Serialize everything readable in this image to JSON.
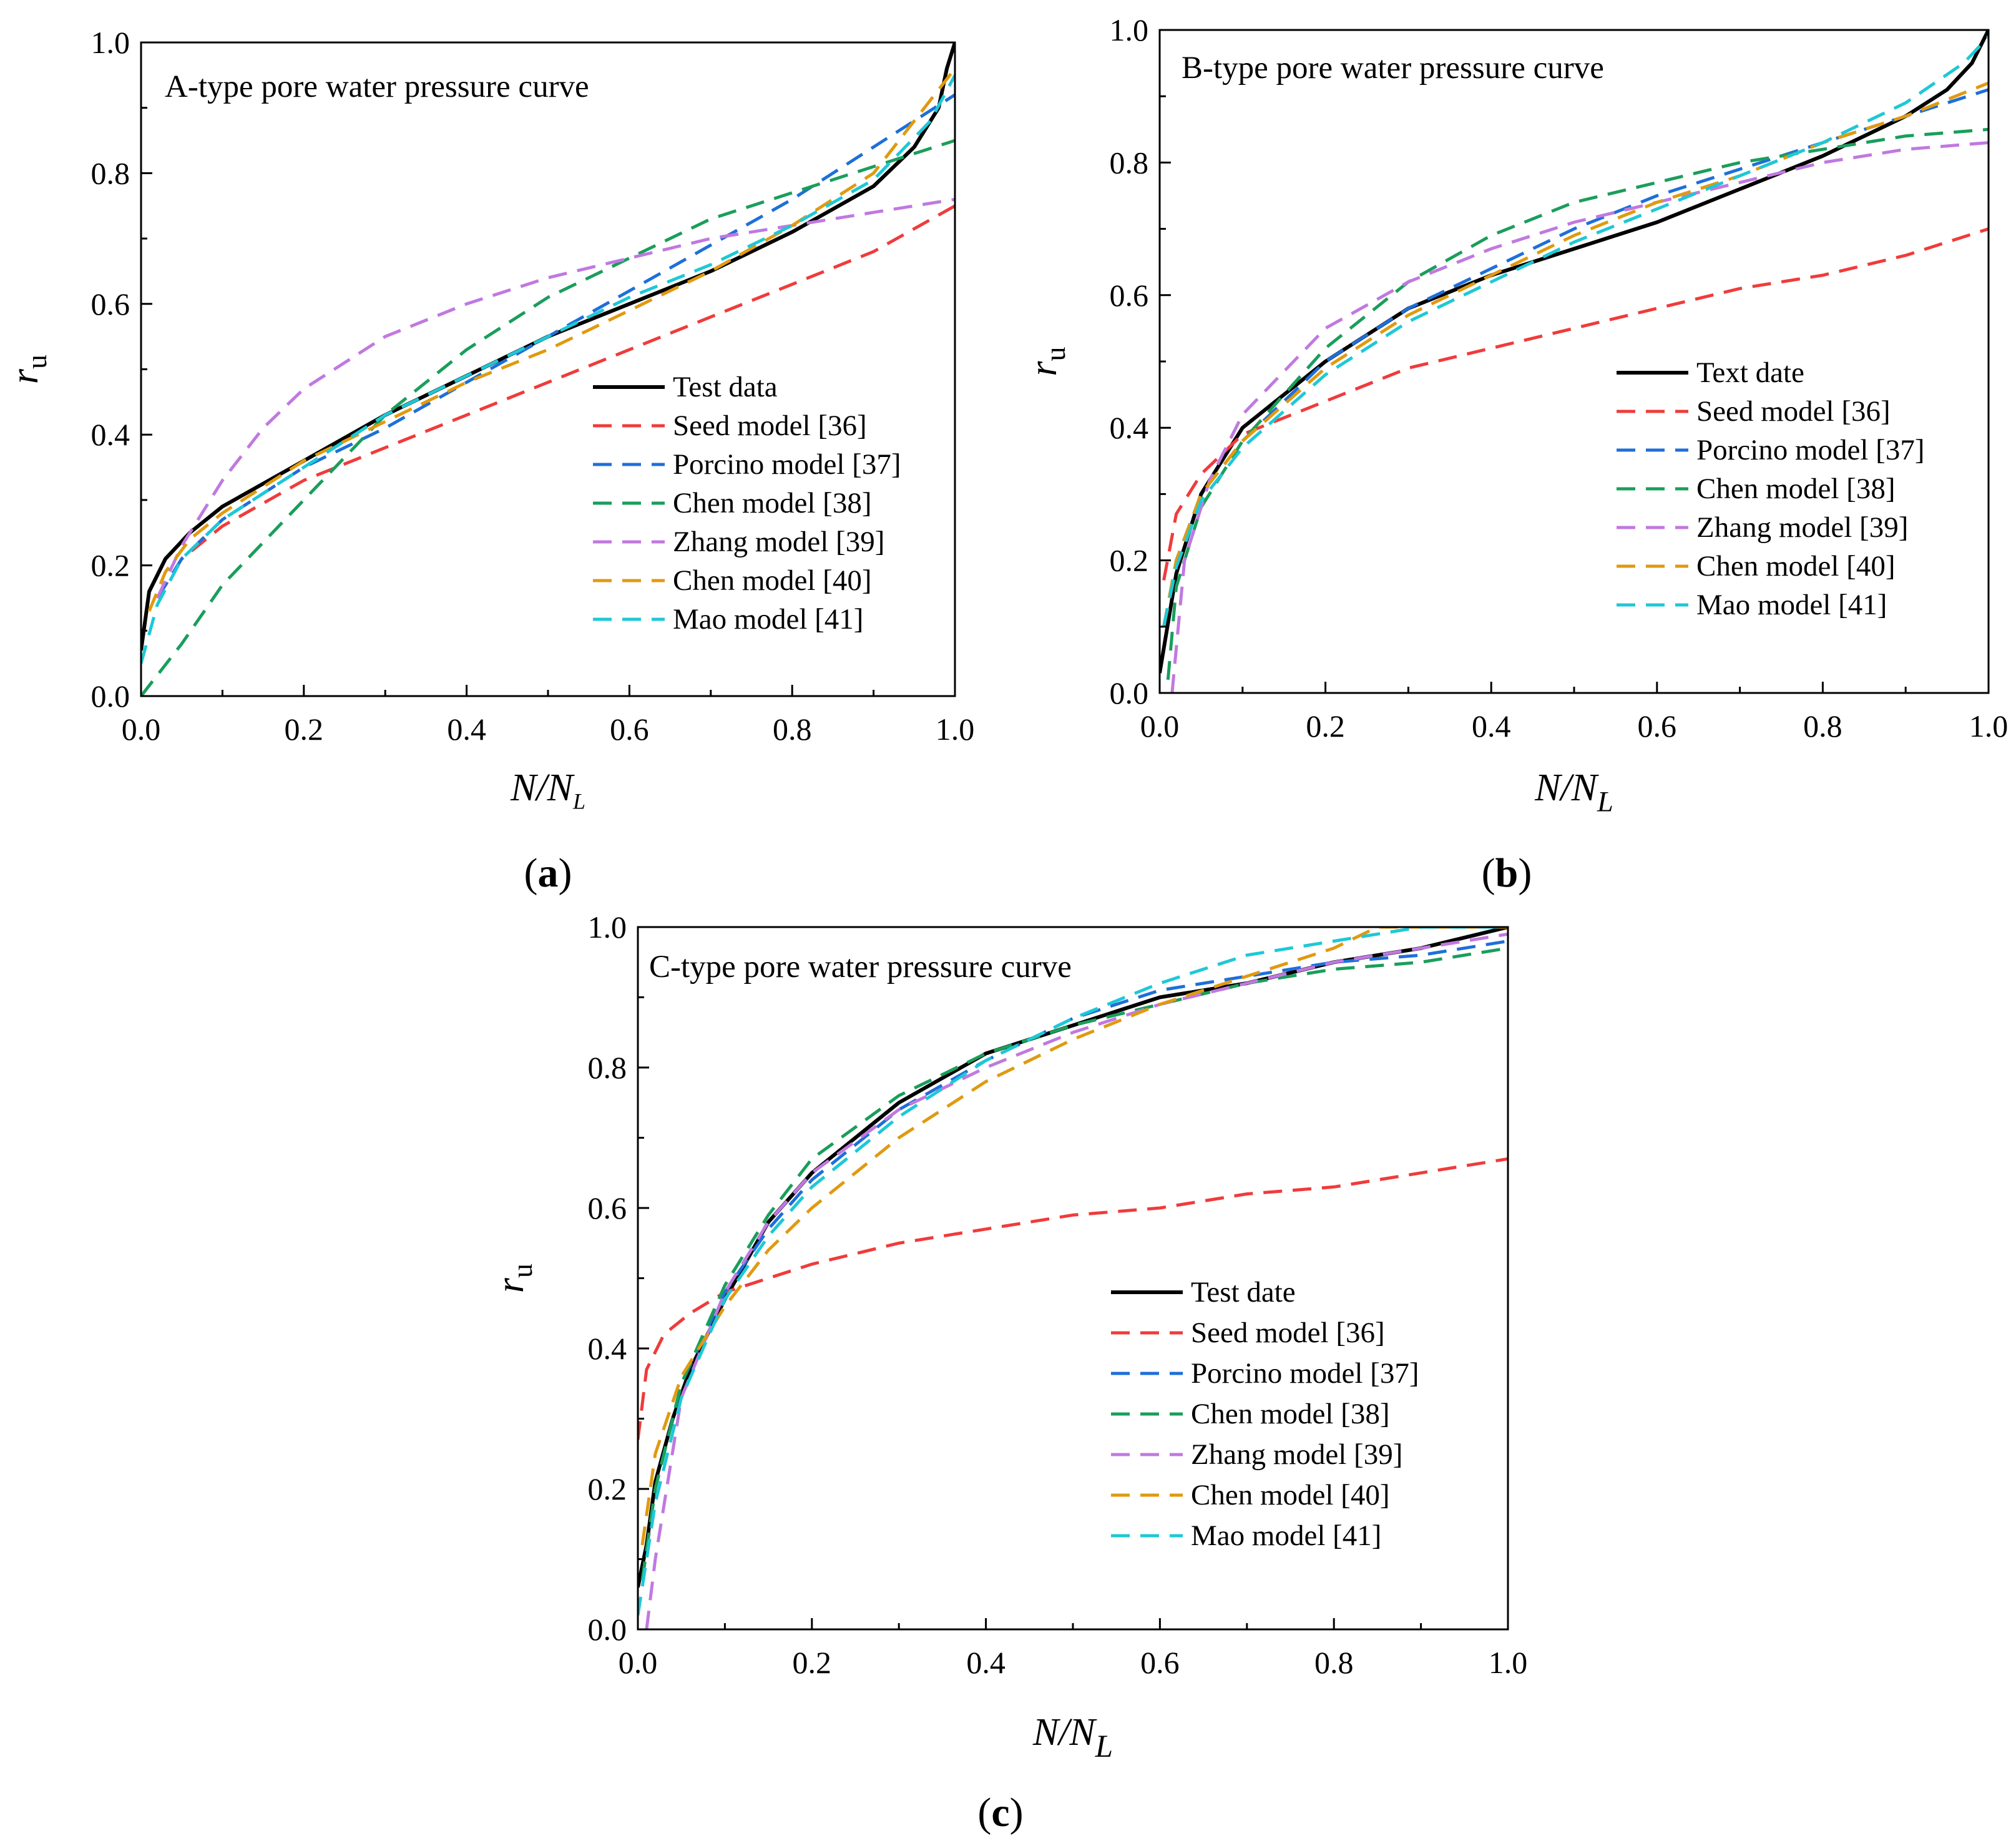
{
  "chart_data": [
    {
      "type": "line",
      "caption": "a",
      "title": "A-type pore water pressure curve",
      "xlabel": "N/N",
      "xlabel_sub": "L",
      "ylabel": "r",
      "ylabel_sub": "u",
      "xlim": [
        0,
        1
      ],
      "ylim": [
        0,
        1
      ],
      "xticks": [
        "0.0",
        "0.2",
        "0.4",
        "0.6",
        "0.8",
        "1.0"
      ],
      "yticks": [
        "0.0",
        "0.2",
        "0.4",
        "0.6",
        "0.8",
        "1.0"
      ],
      "legend_position": "center-right",
      "series": [
        {
          "name": "Test data",
          "color": "#000000",
          "dashed": false,
          "x": [
            0,
            0.01,
            0.03,
            0.06,
            0.1,
            0.2,
            0.3,
            0.4,
            0.5,
            0.6,
            0.7,
            0.8,
            0.9,
            0.95,
            0.98,
            0.99,
            1.0
          ],
          "y": [
            0.07,
            0.16,
            0.21,
            0.25,
            0.29,
            0.36,
            0.43,
            0.49,
            0.55,
            0.6,
            0.65,
            0.71,
            0.78,
            0.84,
            0.9,
            0.96,
            1.0
          ]
        },
        {
          "name": "Seed model [36]",
          "color": "#f03b3b",
          "dashed": true,
          "x": [
            0.02,
            0.05,
            0.1,
            0.2,
            0.3,
            0.4,
            0.5,
            0.6,
            0.7,
            0.8,
            0.9,
            1.0
          ],
          "y": [
            0.15,
            0.21,
            0.26,
            0.33,
            0.38,
            0.43,
            0.48,
            0.53,
            0.58,
            0.63,
            0.68,
            0.75
          ]
        },
        {
          "name": "Porcino model [37]",
          "color": "#1e6fd9",
          "dashed": true,
          "x": [
            0.02,
            0.05,
            0.1,
            0.2,
            0.3,
            0.4,
            0.5,
            0.6,
            0.7,
            0.8,
            0.9,
            1.0
          ],
          "y": [
            0.15,
            0.21,
            0.27,
            0.35,
            0.41,
            0.48,
            0.55,
            0.62,
            0.69,
            0.76,
            0.84,
            0.92
          ]
        },
        {
          "name": "Chen model [38]",
          "color": "#1a9e5b",
          "dashed": true,
          "x": [
            0,
            0.05,
            0.1,
            0.2,
            0.3,
            0.4,
            0.5,
            0.6,
            0.7,
            0.8,
            0.9,
            1.0
          ],
          "y": [
            0.0,
            0.08,
            0.17,
            0.3,
            0.43,
            0.53,
            0.61,
            0.67,
            0.73,
            0.77,
            0.81,
            0.85
          ]
        },
        {
          "name": "Zhang model [39]",
          "color": "#c079e0",
          "dashed": true,
          "x": [
            0.02,
            0.05,
            0.1,
            0.15,
            0.2,
            0.3,
            0.4,
            0.5,
            0.6,
            0.7,
            0.8,
            0.9,
            1.0
          ],
          "y": [
            0.15,
            0.23,
            0.33,
            0.41,
            0.47,
            0.55,
            0.6,
            0.64,
            0.67,
            0.7,
            0.72,
            0.74,
            0.76
          ]
        },
        {
          "name": "Chen model [40]",
          "color": "#e09a10",
          "dashed": true,
          "x": [
            0.01,
            0.03,
            0.06,
            0.1,
            0.2,
            0.3,
            0.4,
            0.5,
            0.6,
            0.7,
            0.8,
            0.9,
            1.0
          ],
          "y": [
            0.13,
            0.19,
            0.24,
            0.28,
            0.36,
            0.42,
            0.48,
            0.53,
            0.59,
            0.65,
            0.72,
            0.8,
            0.96
          ]
        },
        {
          "name": "Mao model [41]",
          "color": "#1ec8d6",
          "dashed": true,
          "x": [
            0,
            0.02,
            0.05,
            0.1,
            0.2,
            0.3,
            0.4,
            0.5,
            0.6,
            0.7,
            0.8,
            0.9,
            0.97,
            1.0
          ],
          "y": [
            0.05,
            0.14,
            0.21,
            0.27,
            0.35,
            0.43,
            0.49,
            0.55,
            0.61,
            0.66,
            0.72,
            0.79,
            0.88,
            0.95
          ]
        }
      ]
    },
    {
      "type": "line",
      "caption": "b",
      "title": "B-type pore water pressure curve",
      "xlabel": "N/N",
      "xlabel_sub": "L",
      "ylabel": "r",
      "ylabel_sub": "u",
      "xlim": [
        0,
        1
      ],
      "ylim": [
        0,
        1
      ],
      "xticks": [
        "0.0",
        "0.2",
        "0.4",
        "0.6",
        "0.8",
        "1.0"
      ],
      "yticks": [
        "0.0",
        "0.2",
        "0.4",
        "0.6",
        "0.8",
        "1.0"
      ],
      "legend_position": "center-right",
      "series": [
        {
          "name": "Text date",
          "color": "#000000",
          "dashed": false,
          "x": [
            0,
            0.02,
            0.05,
            0.1,
            0.15,
            0.2,
            0.3,
            0.4,
            0.5,
            0.6,
            0.7,
            0.8,
            0.9,
            0.95,
            0.98,
            1.0
          ],
          "y": [
            0.03,
            0.18,
            0.3,
            0.4,
            0.45,
            0.5,
            0.58,
            0.63,
            0.67,
            0.71,
            0.76,
            0.81,
            0.87,
            0.91,
            0.95,
            1.0
          ]
        },
        {
          "name": "Seed model [36]",
          "color": "#f03b3b",
          "dashed": true,
          "x": [
            0.005,
            0.02,
            0.05,
            0.1,
            0.2,
            0.3,
            0.4,
            0.5,
            0.6,
            0.7,
            0.8,
            0.9,
            1.0
          ],
          "y": [
            0.17,
            0.27,
            0.33,
            0.39,
            0.44,
            0.49,
            0.52,
            0.55,
            0.58,
            0.61,
            0.63,
            0.66,
            0.7
          ]
        },
        {
          "name": "Porcino model [37]",
          "color": "#1e6fd9",
          "dashed": true,
          "x": [
            0.005,
            0.02,
            0.05,
            0.1,
            0.2,
            0.3,
            0.4,
            0.5,
            0.6,
            0.7,
            0.8,
            0.9,
            1.0
          ],
          "y": [
            0.1,
            0.2,
            0.3,
            0.38,
            0.5,
            0.58,
            0.64,
            0.7,
            0.75,
            0.79,
            0.83,
            0.87,
            0.91
          ]
        },
        {
          "name": "Chen model [38]",
          "color": "#1a9e5b",
          "dashed": true,
          "x": [
            0.01,
            0.02,
            0.05,
            0.1,
            0.2,
            0.3,
            0.4,
            0.5,
            0.6,
            0.7,
            0.8,
            0.9,
            1.0
          ],
          "y": [
            0.02,
            0.16,
            0.28,
            0.38,
            0.52,
            0.62,
            0.69,
            0.74,
            0.77,
            0.8,
            0.82,
            0.84,
            0.85
          ]
        },
        {
          "name": "Zhang model [39]",
          "color": "#c079e0",
          "dashed": true,
          "x": [
            0.015,
            0.03,
            0.06,
            0.1,
            0.2,
            0.3,
            0.4,
            0.5,
            0.6,
            0.7,
            0.8,
            0.9,
            1.0
          ],
          "y": [
            0.0,
            0.2,
            0.32,
            0.42,
            0.55,
            0.62,
            0.67,
            0.71,
            0.74,
            0.77,
            0.8,
            0.82,
            0.83
          ]
        },
        {
          "name": "Chen model [40]",
          "color": "#e09a10",
          "dashed": true,
          "x": [
            0.005,
            0.02,
            0.05,
            0.1,
            0.2,
            0.3,
            0.4,
            0.5,
            0.6,
            0.7,
            0.8,
            0.9,
            1.0
          ],
          "y": [
            0.1,
            0.2,
            0.3,
            0.38,
            0.49,
            0.57,
            0.63,
            0.69,
            0.74,
            0.78,
            0.83,
            0.87,
            0.92
          ]
        },
        {
          "name": "Mao model [41]",
          "color": "#1ec8d6",
          "dashed": true,
          "x": [
            0.005,
            0.02,
            0.05,
            0.1,
            0.2,
            0.3,
            0.4,
            0.5,
            0.6,
            0.7,
            0.8,
            0.9,
            0.97,
            1.0
          ],
          "y": [
            0.1,
            0.19,
            0.29,
            0.37,
            0.48,
            0.56,
            0.62,
            0.68,
            0.73,
            0.78,
            0.83,
            0.89,
            0.95,
            0.99
          ]
        }
      ]
    },
    {
      "type": "line",
      "caption": "c",
      "title": "C-type pore water pressure curve",
      "xlabel": "N/N",
      "xlabel_sub": "L",
      "ylabel": "r",
      "ylabel_sub": "u",
      "xlim": [
        0,
        1
      ],
      "ylim": [
        0,
        1
      ],
      "xticks": [
        "0.0",
        "0.2",
        "0.4",
        "0.6",
        "0.8",
        "1.0"
      ],
      "yticks": [
        "0.0",
        "0.2",
        "0.4",
        "0.6",
        "0.8",
        "1.0"
      ],
      "legend_position": "center-right",
      "series": [
        {
          "name": "Test date",
          "color": "#000000",
          "dashed": false,
          "x": [
            0,
            0.01,
            0.02,
            0.04,
            0.06,
            0.08,
            0.1,
            0.15,
            0.2,
            0.3,
            0.4,
            0.5,
            0.6,
            0.7,
            0.8,
            0.9,
            1.0
          ],
          "y": [
            0.06,
            0.12,
            0.21,
            0.3,
            0.37,
            0.42,
            0.47,
            0.58,
            0.65,
            0.75,
            0.82,
            0.86,
            0.9,
            0.92,
            0.95,
            0.97,
            1.0
          ]
        },
        {
          "name": "Seed model [36]",
          "color": "#f03b3b",
          "dashed": true,
          "x": [
            0,
            0.01,
            0.03,
            0.06,
            0.1,
            0.15,
            0.2,
            0.3,
            0.4,
            0.5,
            0.6,
            0.7,
            0.8,
            0.9,
            1.0
          ],
          "y": [
            0.27,
            0.37,
            0.42,
            0.45,
            0.48,
            0.5,
            0.52,
            0.55,
            0.57,
            0.59,
            0.6,
            0.62,
            0.63,
            0.65,
            0.67
          ]
        },
        {
          "name": "Porcino model [37]",
          "color": "#1e6fd9",
          "dashed": true,
          "x": [
            0.005,
            0.02,
            0.05,
            0.1,
            0.15,
            0.2,
            0.3,
            0.4,
            0.5,
            0.6,
            0.7,
            0.8,
            0.9,
            1.0
          ],
          "y": [
            0.07,
            0.2,
            0.35,
            0.48,
            0.57,
            0.64,
            0.74,
            0.81,
            0.87,
            0.91,
            0.93,
            0.95,
            0.96,
            0.98
          ]
        },
        {
          "name": "Chen model [38]",
          "color": "#1a9e5b",
          "dashed": true,
          "x": [
            0.005,
            0.02,
            0.05,
            0.1,
            0.15,
            0.2,
            0.3,
            0.4,
            0.5,
            0.6,
            0.7,
            0.8,
            0.9,
            1.0
          ],
          "y": [
            0.07,
            0.2,
            0.35,
            0.49,
            0.59,
            0.67,
            0.76,
            0.82,
            0.86,
            0.89,
            0.92,
            0.94,
            0.95,
            0.97
          ]
        },
        {
          "name": "Zhang model [39]",
          "color": "#c079e0",
          "dashed": true,
          "x": [
            0.01,
            0.02,
            0.05,
            0.1,
            0.15,
            0.2,
            0.3,
            0.4,
            0.5,
            0.6,
            0.7,
            0.8,
            0.9,
            1.0
          ],
          "y": [
            0.0,
            0.1,
            0.33,
            0.48,
            0.58,
            0.65,
            0.74,
            0.8,
            0.85,
            0.89,
            0.92,
            0.95,
            0.97,
            0.99
          ]
        },
        {
          "name": "Chen model [40]",
          "color": "#e09a10",
          "dashed": true,
          "x": [
            0.005,
            0.02,
            0.05,
            0.1,
            0.15,
            0.2,
            0.3,
            0.4,
            0.5,
            0.6,
            0.7,
            0.8,
            0.85,
            0.9,
            1.0
          ],
          "y": [
            0.12,
            0.25,
            0.36,
            0.46,
            0.54,
            0.6,
            0.7,
            0.78,
            0.84,
            0.89,
            0.93,
            0.97,
            1.0,
            1.0,
            1.0
          ]
        },
        {
          "name": "Mao model [41]",
          "color": "#1ec8d6",
          "dashed": true,
          "x": [
            0,
            0.02,
            0.05,
            0.1,
            0.15,
            0.2,
            0.3,
            0.4,
            0.5,
            0.6,
            0.7,
            0.8,
            0.9,
            1.0
          ],
          "y": [
            0.02,
            0.18,
            0.33,
            0.47,
            0.56,
            0.63,
            0.73,
            0.81,
            0.87,
            0.92,
            0.96,
            0.98,
            1.0,
            1.0
          ]
        }
      ]
    }
  ]
}
